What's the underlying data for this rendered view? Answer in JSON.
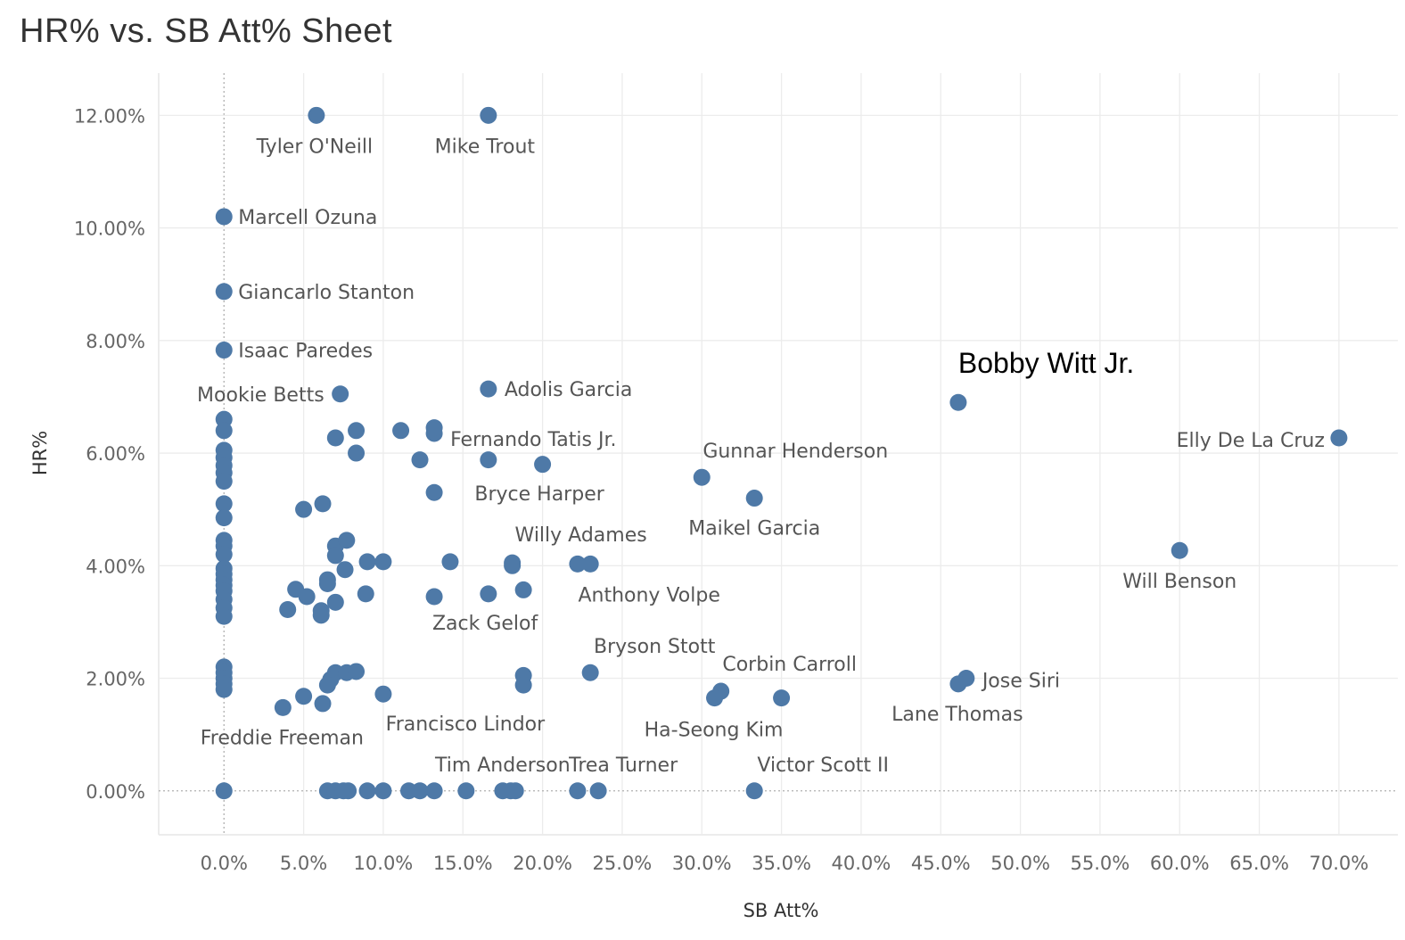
{
  "title": "HR% vs. SB Att% Sheet",
  "chart_data": {
    "type": "scatter",
    "title": "HR% vs. SB Att% Sheet",
    "xlabel": "SB Att%",
    "ylabel": "HR%",
    "xlim": [
      -4.1,
      73.7
    ],
    "ylim": [
      -0.78,
      12.75
    ],
    "x_ticks": [
      0,
      5,
      10,
      15,
      20,
      25,
      30,
      35,
      40,
      45,
      50,
      55,
      60,
      65,
      70
    ],
    "x_tick_labels": [
      "0.0%",
      "5.0%",
      "10.0%",
      "15.0%",
      "20.0%",
      "25.0%",
      "30.0%",
      "35.0%",
      "40.0%",
      "45.0%",
      "50.0%",
      "55.0%",
      "60.0%",
      "65.0%",
      "70.0%"
    ],
    "y_ticks": [
      0,
      2,
      4,
      6,
      8,
      10,
      12
    ],
    "y_tick_labels": [
      "0.00%",
      "2.00%",
      "4.00%",
      "6.00%",
      "8.00%",
      "10.00%",
      "12.00%"
    ],
    "grid": true,
    "marker_color": "#4e79a7",
    "points": [
      {
        "x": 5.8,
        "y": 12.0,
        "label": "Tyler O'Neill"
      },
      {
        "x": 16.6,
        "y": 12.0,
        "label": "Mike Trout"
      },
      {
        "x": 0.0,
        "y": 10.2,
        "label": "Marcell Ozuna"
      },
      {
        "x": 0.0,
        "y": 8.87,
        "label": "Giancarlo Stanton"
      },
      {
        "x": 0.0,
        "y": 7.83,
        "label": "Isaac Paredes"
      },
      {
        "x": 7.3,
        "y": 7.05,
        "label": "Mookie Betts"
      },
      {
        "x": 16.6,
        "y": 7.14,
        "label": "Adolis Garcia"
      },
      {
        "x": 46.1,
        "y": 6.9,
        "label": "Bobby Witt Jr."
      },
      {
        "x": 70.0,
        "y": 6.27,
        "label": "Elly De La Cruz"
      },
      {
        "x": 13.2,
        "y": 6.35,
        "label": "Fernando Tatis Jr."
      },
      {
        "x": 30.0,
        "y": 5.57,
        "label": "Gunnar Henderson"
      },
      {
        "x": 13.2,
        "y": 5.3,
        "label": "Bryce Harper"
      },
      {
        "x": 33.3,
        "y": 5.2,
        "label": "Maikel Garcia"
      },
      {
        "x": 18.1,
        "y": 4.05,
        "label": "Willy Adames"
      },
      {
        "x": 60.0,
        "y": 4.27,
        "label": "Will Benson"
      },
      {
        "x": 23.0,
        "y": 4.03,
        "label": "Anthony Volpe"
      },
      {
        "x": 13.2,
        "y": 3.45,
        "label": "Zack Gelof"
      },
      {
        "x": 23.0,
        "y": 2.1,
        "label": "Bryson Stott"
      },
      {
        "x": 31.2,
        "y": 1.77,
        "label": "Corbin Carroll"
      },
      {
        "x": 46.6,
        "y": 2.0,
        "label": "Jose Siri"
      },
      {
        "x": 46.1,
        "y": 1.9,
        "label": "Lane Thomas"
      },
      {
        "x": 30.8,
        "y": 1.65,
        "label": "Ha-Seong Kim"
      },
      {
        "x": 3.7,
        "y": 1.48,
        "label": "Freddie Freeman"
      },
      {
        "x": 10.0,
        "y": 1.72,
        "label": "Francisco Lindor"
      },
      {
        "x": 15.2,
        "y": 0.0,
        "label": "Tim Anderson"
      },
      {
        "x": 23.5,
        "y": 0.0,
        "label": "Trea Turner"
      },
      {
        "x": 33.3,
        "y": 0.0,
        "label": "Victor Scott II"
      },
      {
        "x": 35.0,
        "y": 1.65
      },
      {
        "x": 0,
        "y": 6.6
      },
      {
        "x": 0,
        "y": 6.4
      },
      {
        "x": 0,
        "y": 6.05
      },
      {
        "x": 0,
        "y": 5.92
      },
      {
        "x": 0,
        "y": 5.78
      },
      {
        "x": 0,
        "y": 5.65
      },
      {
        "x": 0,
        "y": 5.5
      },
      {
        "x": 0,
        "y": 5.1
      },
      {
        "x": 0,
        "y": 4.85
      },
      {
        "x": 0,
        "y": 4.45
      },
      {
        "x": 0,
        "y": 4.35
      },
      {
        "x": 0,
        "y": 4.2
      },
      {
        "x": 0,
        "y": 3.95
      },
      {
        "x": 0,
        "y": 3.85
      },
      {
        "x": 0,
        "y": 3.75
      },
      {
        "x": 0,
        "y": 3.65
      },
      {
        "x": 0,
        "y": 3.55
      },
      {
        "x": 0,
        "y": 3.4
      },
      {
        "x": 0,
        "y": 3.25
      },
      {
        "x": 0,
        "y": 3.1
      },
      {
        "x": 0,
        "y": 2.2
      },
      {
        "x": 0,
        "y": 2.1
      },
      {
        "x": 0,
        "y": 2.0
      },
      {
        "x": 0,
        "y": 1.9
      },
      {
        "x": 0,
        "y": 1.8
      },
      {
        "x": 0,
        "y": 0.0
      },
      {
        "x": 7.0,
        "y": 6.27
      },
      {
        "x": 8.3,
        "y": 6.4
      },
      {
        "x": 8.3,
        "y": 6.0
      },
      {
        "x": 11.1,
        "y": 6.4
      },
      {
        "x": 13.2,
        "y": 6.45
      },
      {
        "x": 12.3,
        "y": 5.88
      },
      {
        "x": 16.6,
        "y": 5.88
      },
      {
        "x": 20.0,
        "y": 5.8
      },
      {
        "x": 5.0,
        "y": 5.0
      },
      {
        "x": 6.2,
        "y": 5.1
      },
      {
        "x": 7.0,
        "y": 4.35
      },
      {
        "x": 7.7,
        "y": 4.45
      },
      {
        "x": 7.0,
        "y": 4.18
      },
      {
        "x": 7.6,
        "y": 3.93
      },
      {
        "x": 9.0,
        "y": 4.07
      },
      {
        "x": 10.0,
        "y": 4.07
      },
      {
        "x": 14.2,
        "y": 4.07
      },
      {
        "x": 18.1,
        "y": 4.0
      },
      {
        "x": 22.2,
        "y": 4.03
      },
      {
        "x": 4.5,
        "y": 3.58
      },
      {
        "x": 5.2,
        "y": 3.45
      },
      {
        "x": 6.5,
        "y": 3.75
      },
      {
        "x": 6.5,
        "y": 3.68
      },
      {
        "x": 4.0,
        "y": 3.22
      },
      {
        "x": 6.1,
        "y": 3.2
      },
      {
        "x": 6.1,
        "y": 3.12
      },
      {
        "x": 7.0,
        "y": 3.35
      },
      {
        "x": 8.9,
        "y": 3.5
      },
      {
        "x": 16.6,
        "y": 3.5
      },
      {
        "x": 18.8,
        "y": 3.57
      },
      {
        "x": 7.0,
        "y": 2.1
      },
      {
        "x": 7.7,
        "y": 2.1
      },
      {
        "x": 8.3,
        "y": 2.12
      },
      {
        "x": 6.7,
        "y": 1.98
      },
      {
        "x": 6.5,
        "y": 1.88
      },
      {
        "x": 5.0,
        "y": 1.68
      },
      {
        "x": 6.2,
        "y": 1.55
      },
      {
        "x": 18.8,
        "y": 2.05
      },
      {
        "x": 18.8,
        "y": 1.88
      },
      {
        "x": 6.5,
        "y": 0.0
      },
      {
        "x": 7.0,
        "y": 0.0
      },
      {
        "x": 7.5,
        "y": 0.0
      },
      {
        "x": 7.8,
        "y": 0.0
      },
      {
        "x": 9.0,
        "y": 0.0
      },
      {
        "x": 10.0,
        "y": 0.0
      },
      {
        "x": 11.6,
        "y": 0.0
      },
      {
        "x": 12.3,
        "y": 0.0
      },
      {
        "x": 13.2,
        "y": 0.0
      },
      {
        "x": 17.5,
        "y": 0.0
      },
      {
        "x": 18.0,
        "y": 0.0
      },
      {
        "x": 18.3,
        "y": 0.0
      },
      {
        "x": 22.2,
        "y": 0.0
      }
    ]
  }
}
